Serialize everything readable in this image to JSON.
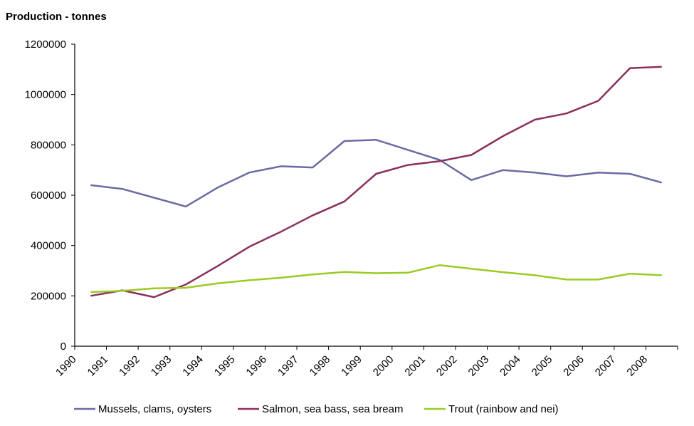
{
  "chart_data": {
    "type": "line",
    "title": "",
    "ylabel": "Production - tonnes",
    "xlabel": "",
    "ylim": [
      0,
      1200000
    ],
    "yticks": [
      0,
      200000,
      400000,
      600000,
      800000,
      1000000,
      1200000
    ],
    "ytick_labels": [
      "0",
      "200000",
      "400000",
      "600000",
      "800000",
      "1000000",
      "1200000"
    ],
    "categories": [
      "1990",
      "1991",
      "1992",
      "1993",
      "1994",
      "1995",
      "1996",
      "1997",
      "1998",
      "1999",
      "2000",
      "2001",
      "2002",
      "2003",
      "2004",
      "2005",
      "2006",
      "2007",
      "2008"
    ],
    "grid": false,
    "legend_position": "bottom",
    "series": [
      {
        "name": "Mussels, clams, oysters",
        "color": "#6b6ba3",
        "values": [
          640000,
          625000,
          590000,
          555000,
          630000,
          690000,
          715000,
          710000,
          815000,
          820000,
          780000,
          740000,
          660000,
          700000,
          690000,
          675000,
          690000,
          685000,
          650000
        ]
      },
      {
        "name": "Salmon, sea bass, sea bream",
        "color": "#8b2f5e",
        "values": [
          200000,
          222000,
          195000,
          245000,
          318000,
          395000,
          455000,
          520000,
          575000,
          685000,
          720000,
          735000,
          760000,
          835000,
          900000,
          925000,
          975000,
          1105000,
          1110000
        ]
      },
      {
        "name": "Trout (rainbow and nei)",
        "color": "#99cc22",
        "values": [
          215000,
          220000,
          230000,
          232000,
          250000,
          262000,
          272000,
          285000,
          295000,
          290000,
          292000,
          322000,
          308000,
          294000,
          282000,
          265000,
          265000,
          288000,
          282000
        ]
      }
    ]
  }
}
